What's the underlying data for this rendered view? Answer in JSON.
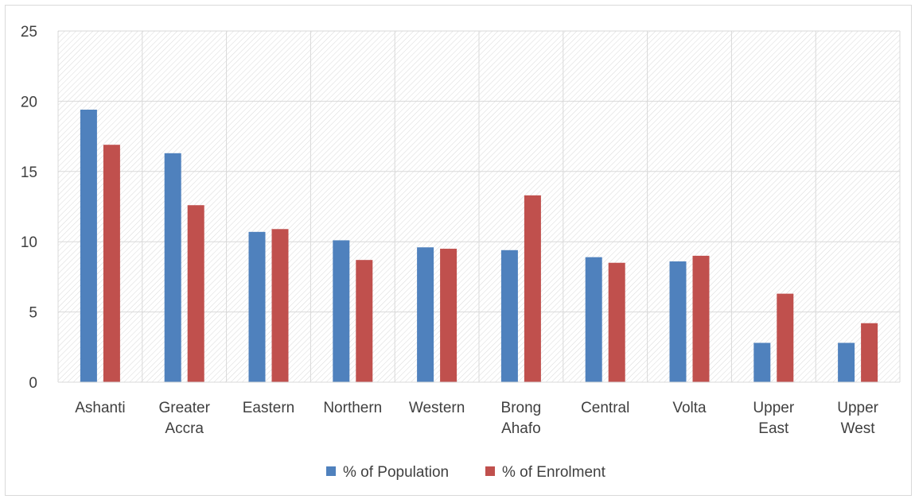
{
  "chart_data": {
    "type": "bar",
    "categories": [
      [
        "Ashanti"
      ],
      [
        "Greater",
        "Accra"
      ],
      [
        "Eastern"
      ],
      [
        "Northern"
      ],
      [
        "Western"
      ],
      [
        "Brong",
        "Ahafo"
      ],
      [
        "Central"
      ],
      [
        "Volta"
      ],
      [
        "Upper",
        "East"
      ],
      [
        "Upper",
        "West"
      ]
    ],
    "series": [
      {
        "name": "% of Population",
        "color": "#4f81bd",
        "values": [
          19.4,
          16.3,
          10.7,
          10.1,
          9.6,
          9.4,
          8.9,
          8.6,
          2.8,
          2.8
        ]
      },
      {
        "name": "% of Enrolment",
        "color": "#c0504d",
        "values": [
          16.9,
          12.6,
          10.9,
          8.7,
          9.5,
          13.3,
          8.5,
          9.0,
          6.3,
          4.2
        ]
      }
    ],
    "y_ticks": [
      0,
      5,
      10,
      15,
      20,
      25
    ],
    "ylim": [
      0,
      25
    ],
    "grid": true,
    "background_pattern": "diagonal-hatch",
    "legend_position": "bottom-center",
    "title": "",
    "xlabel": "",
    "ylabel": ""
  }
}
